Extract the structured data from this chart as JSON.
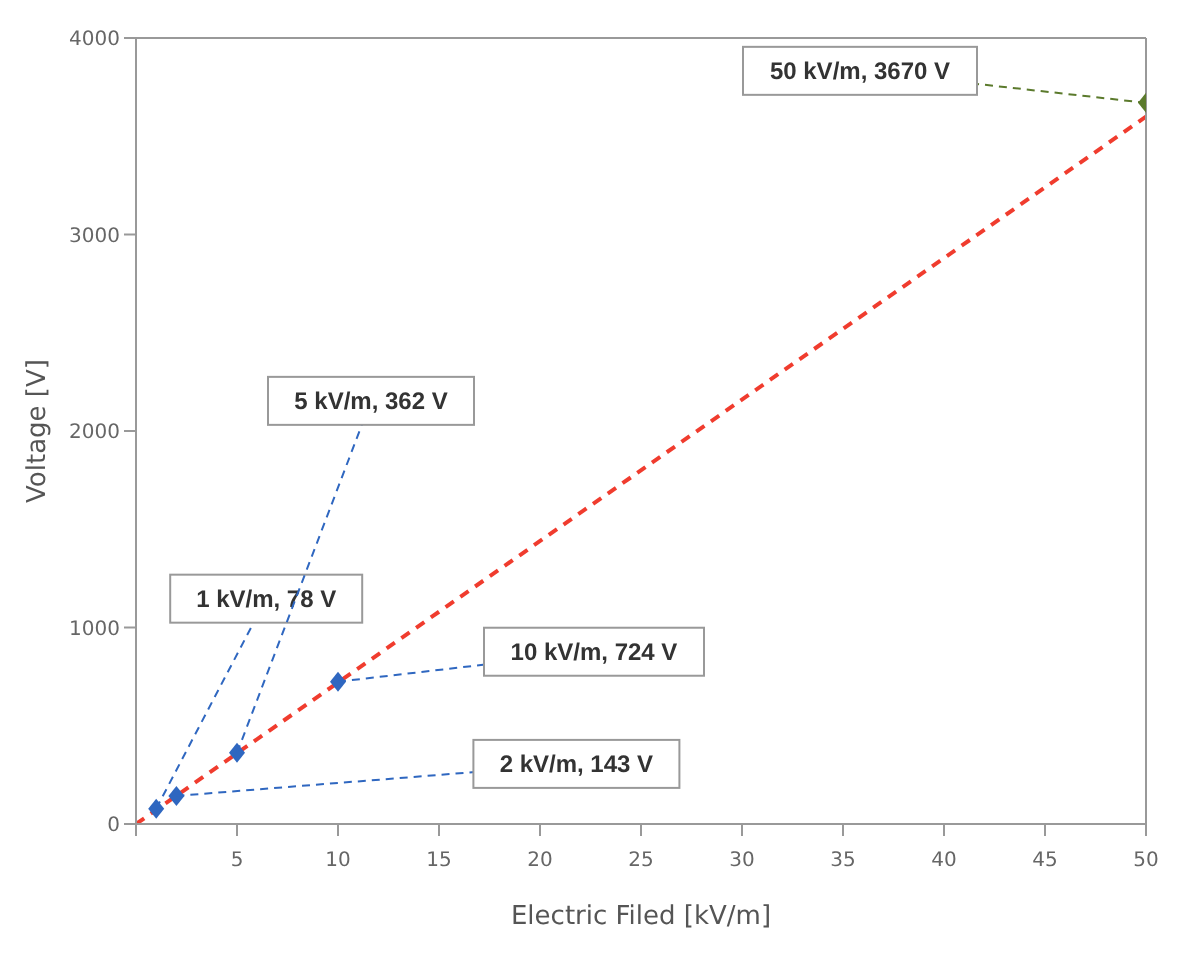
{
  "chart_data": {
    "type": "scatter",
    "xlabel": "Electric Filed [kV/m]",
    "ylabel": "Voltage [V]",
    "xlim": [
      0,
      50
    ],
    "xticks": [
      {
        "value": 0,
        "label": null
      },
      5,
      10,
      15,
      20,
      25,
      30,
      35,
      40,
      45,
      50
    ],
    "ylim": [
      0,
      4000
    ],
    "yticks": [
      0,
      1000,
      2000,
      3000,
      4000
    ],
    "series": [
      {
        "x": [
          1,
          2,
          5,
          10,
          50
        ],
        "values": [
          78,
          143,
          362,
          724,
          3670
        ],
        "colors": [
          "#2f67c0",
          "#2f67c0",
          "#2f67c0",
          "#2f67c0",
          "#5b7a2c"
        ],
        "marker": "diamond"
      },
      {
        "type": "line",
        "x": [
          0,
          50
        ],
        "values": [
          0,
          3600
        ],
        "color": "#f03c2e",
        "line_style": "dashed",
        "marker": "none"
      }
    ],
    "annotations": [
      {
        "text": "1 kV/m, 78 V",
        "x": 1,
        "y": 78
      },
      {
        "text": "2 kV/m, 143 V",
        "x": 2,
        "y": 143
      },
      {
        "text": "5 kV/m, 362 V",
        "x": 5,
        "y": 362
      },
      {
        "text": "10 kV/m, 724 V",
        "x": 10,
        "y": 724
      },
      {
        "text": "50 kV/m, 3670 V",
        "x": 50,
        "y": 3670
      }
    ]
  }
}
